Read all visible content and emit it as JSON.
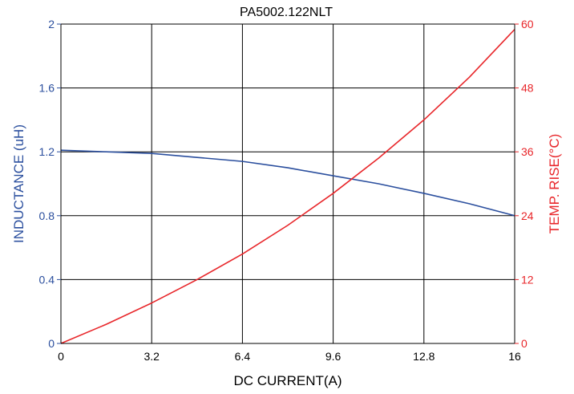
{
  "chart_data": {
    "type": "line",
    "title": "PA5002.122NLT",
    "xlabel": "DC CURRENT(A)",
    "ylabel_left": "INDUCTANCE (uH)",
    "ylabel_right": "TEMP. RISE(°C)",
    "xlim": [
      0,
      16
    ],
    "ylim_left": [
      0,
      2
    ],
    "ylim_right": [
      0,
      60
    ],
    "x_ticks": [
      "0",
      "3.2",
      "6.4",
      "9.6",
      "12.8",
      "16"
    ],
    "y_left_ticks": [
      "0",
      "0.4",
      "0.8",
      "1.2",
      "1.6",
      "2"
    ],
    "y_right_ticks": [
      "0",
      "12",
      "24",
      "36",
      "48",
      "60"
    ],
    "grid": true,
    "colors": {
      "inductance": "#2b4f9e",
      "temp": "#e8262a",
      "axis": "#000000"
    },
    "series": [
      {
        "axis": "left",
        "x": [
          0,
          1.6,
          3.2,
          4.8,
          6.4,
          8.0,
          9.6,
          11.2,
          12.8,
          14.4,
          16
        ],
        "values": [
          1.21,
          1.2,
          1.19,
          1.165,
          1.14,
          1.1,
          1.05,
          1.0,
          0.94,
          0.875,
          0.8
        ]
      },
      {
        "axis": "right",
        "x": [
          0,
          1.6,
          3.2,
          4.8,
          6.4,
          8.0,
          9.6,
          11.2,
          12.8,
          14.4,
          16
        ],
        "values": [
          0,
          3.6,
          7.6,
          12.0,
          16.8,
          22.2,
          28.2,
          34.8,
          42.0,
          50.0,
          59.0
        ]
      }
    ]
  }
}
